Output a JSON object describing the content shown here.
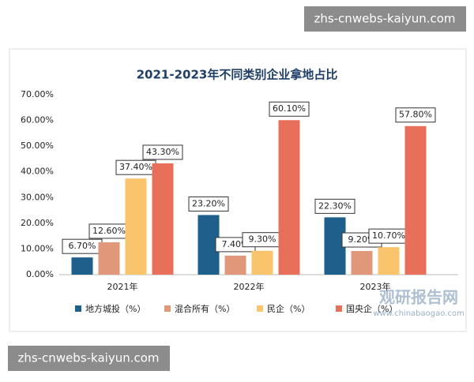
{
  "watermarks": [
    "zhs-cnwebs-kaiyun.com",
    "zhs-cnwebs-kaiyun.com"
  ],
  "logo": {
    "name": "观研报告网",
    "url": "www.chinabaogao.com"
  },
  "chart_data": {
    "type": "bar",
    "title": "2021-2023年不同类别企业拿地占比",
    "categories": [
      "2021年",
      "2022年",
      "2023年"
    ],
    "series": [
      {
        "name": "地方城投（%）",
        "color": "#1f5f8b",
        "values": [
          6.7,
          23.2,
          22.3
        ],
        "value_labels": [
          "6.70%",
          "23.20%",
          "22.30%"
        ]
      },
      {
        "name": "混合所有（%）",
        "color": "#e0977a",
        "values": [
          12.6,
          7.4,
          9.2
        ],
        "value_labels": [
          "12.60%",
          "7.40%",
          "9.20%"
        ]
      },
      {
        "name": "民企（%）",
        "color": "#f9c46b",
        "values": [
          37.4,
          9.3,
          10.7
        ],
        "value_labels": [
          "37.40%",
          "9.30%",
          "10.70%"
        ]
      },
      {
        "name": "国央企（%）",
        "color": "#e8705a",
        "values": [
          43.3,
          60.1,
          57.8
        ],
        "value_labels": [
          "43.30%",
          "60.10%",
          "57.80%"
        ]
      }
    ],
    "ylim": [
      0,
      70
    ],
    "yticks": [
      {
        "value": 0,
        "label": "0.00%"
      },
      {
        "value": 10,
        "label": "10.00%"
      },
      {
        "value": 20,
        "label": "20.00%"
      },
      {
        "value": 30,
        "label": "30.00%"
      },
      {
        "value": 40,
        "label": "40.00%"
      },
      {
        "value": 50,
        "label": "50.00%"
      },
      {
        "value": 60,
        "label": "60.00%"
      },
      {
        "value": 70,
        "label": "70.00%"
      }
    ],
    "grid": false,
    "legend": "bottom"
  }
}
